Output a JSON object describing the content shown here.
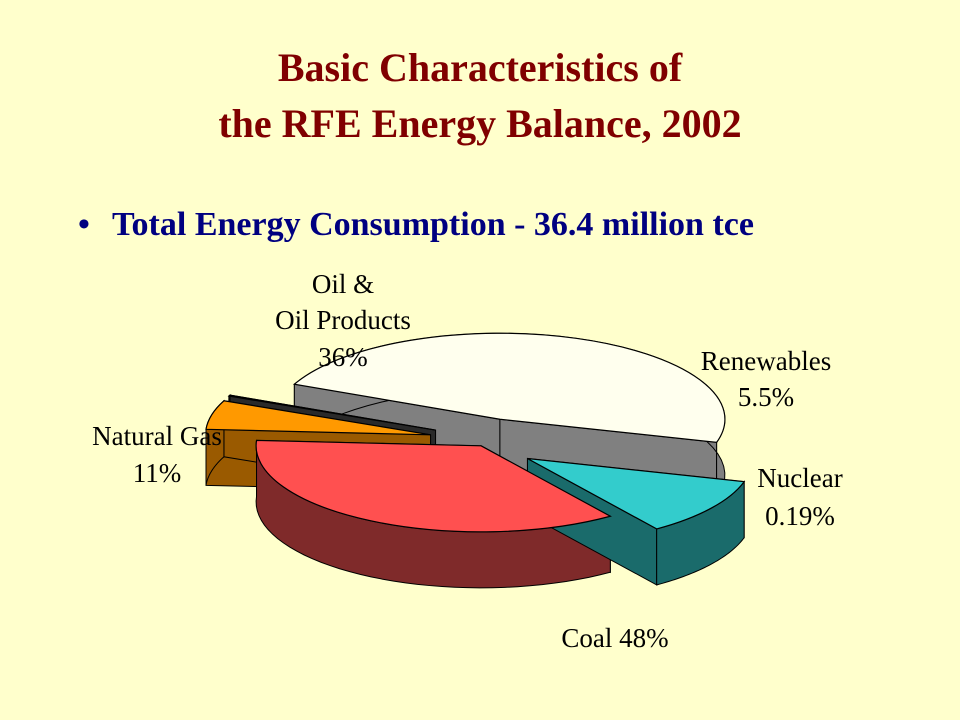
{
  "slide": {
    "title_line1": "Basic Characteristics of",
    "title_line2": "the RFE Energy Balance, 2002",
    "bullet_symbol": "•",
    "bullet_text": "Total Energy Consumption  - 36.4 million tce"
  },
  "chart_data": {
    "type": "pie",
    "style": "3d-exploded",
    "slices": [
      {
        "name": "Coal",
        "value_label": "48%",
        "value": 48,
        "top_color": "#ffffee",
        "side_color": "#808080"
      },
      {
        "name": "Natural Gas",
        "value_label": "11%",
        "value": 11,
        "top_color": "#33cccc",
        "side_color": "#1a6b6b"
      },
      {
        "name": "Oil & Oil Products",
        "value_label": "36%",
        "value": 36,
        "top_color": "#ff5050",
        "side_color": "#7f2a2a"
      },
      {
        "name": "Renewables",
        "value_label": "5.5%",
        "value": 5.5,
        "top_color": "#ff9900",
        "side_color": "#9a5a00"
      },
      {
        "name": "Nuclear",
        "value_label": "0.19%",
        "value": 0.19,
        "top_color": "#3c3c3c",
        "side_color": "#2a2a2a"
      }
    ],
    "labels": {
      "oil_line1": "Oil &",
      "oil_line2": "Oil Products",
      "oil_line3": "36%",
      "renew_line1": "Renewables",
      "renew_line2": "5.5%",
      "gas_line1": "Natural Gas",
      "gas_line2": "11%",
      "nuclear_line1": "Nuclear",
      "nuclear_line2": "0.19%",
      "coal_line1": "Coal  48%"
    }
  }
}
